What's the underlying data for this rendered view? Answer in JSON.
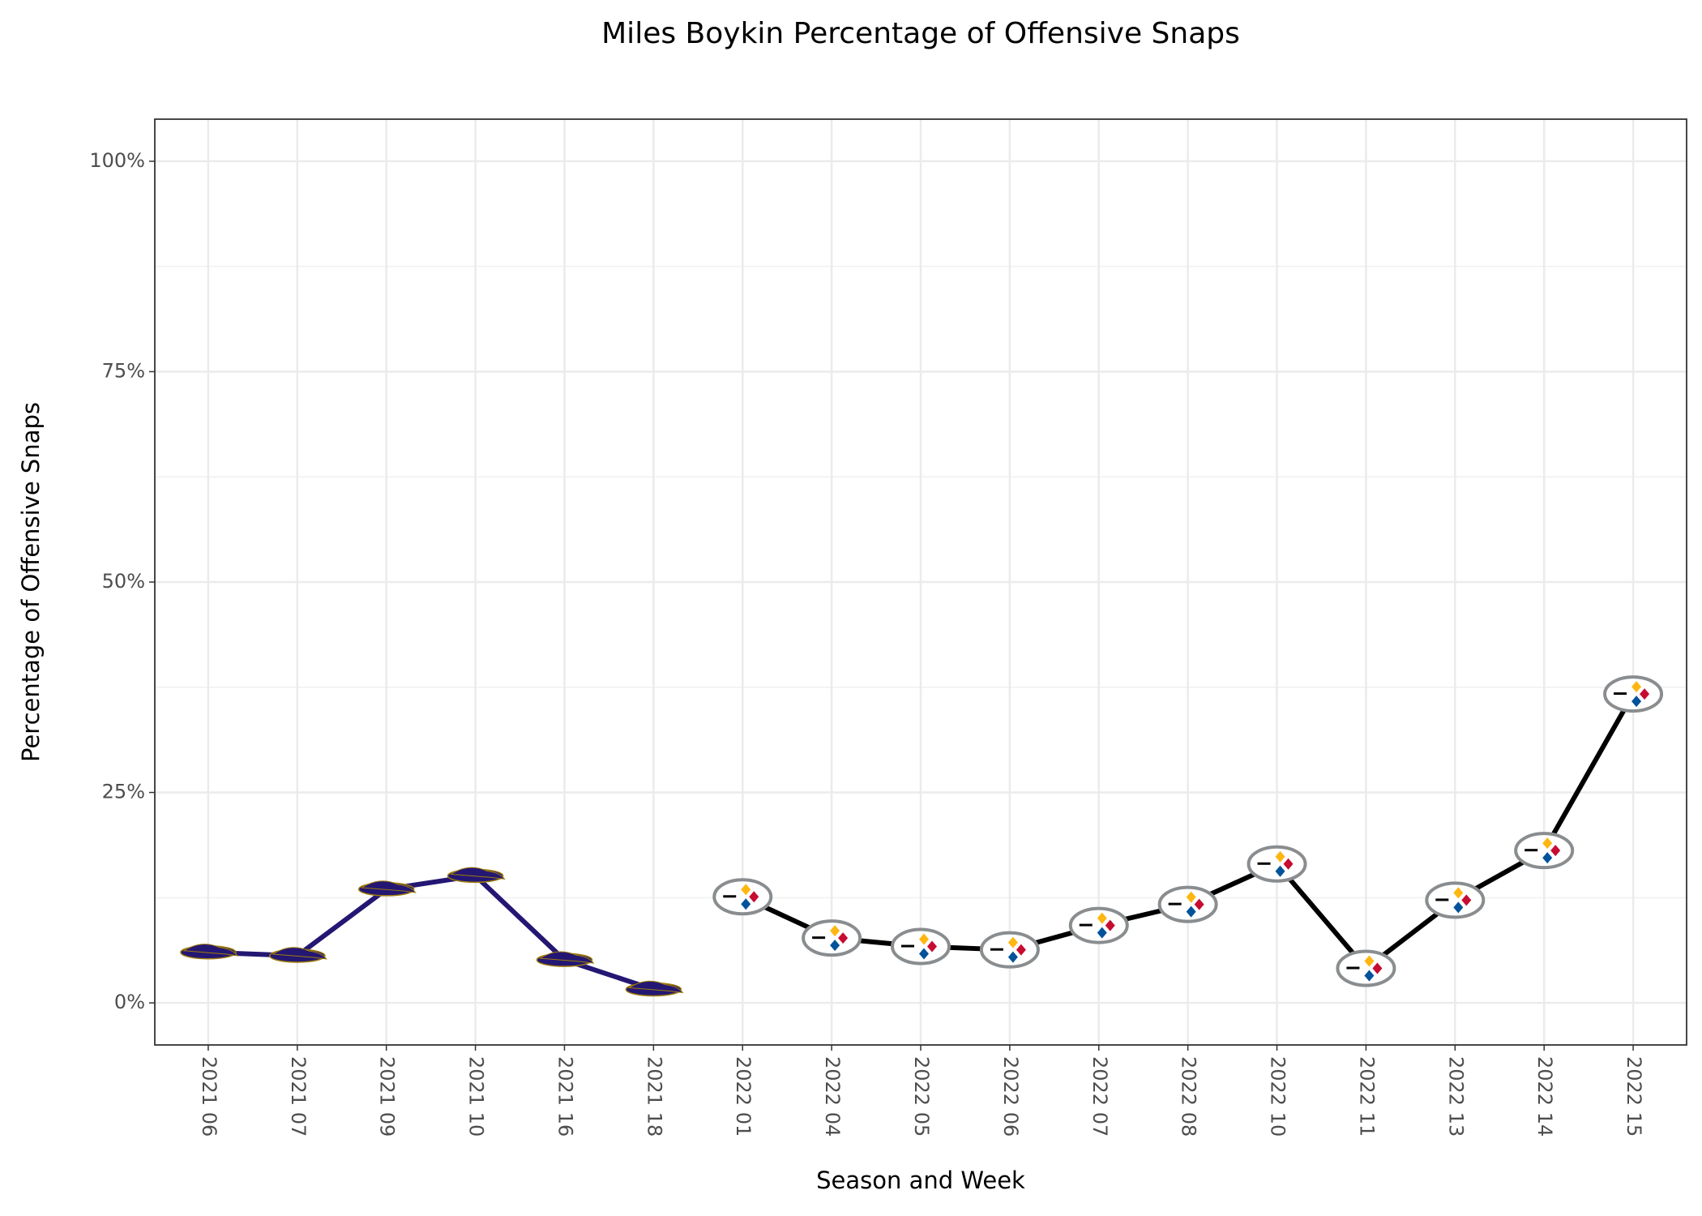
{
  "chart_data": {
    "type": "line",
    "title": "Miles Boykin Percentage of Offensive Snaps",
    "x_label": "Season and Week",
    "y_label": "Percentage of Offensive Snaps",
    "categories": [
      "2021 06",
      "2021 07",
      "2021 09",
      "2021 10",
      "2021 16",
      "2021 18",
      "2022 01",
      "2022 04",
      "2022 05",
      "2022 06",
      "2022 07",
      "2022 08",
      "2022 10",
      "2022 11",
      "2022 13",
      "2022 14",
      "2022 15"
    ],
    "series": [
      {
        "color": "#241773",
        "values": [
          6.0,
          5.6,
          13.5,
          15.1,
          5.1,
          1.6,
          null,
          null,
          null,
          null,
          null,
          null,
          null,
          null,
          null,
          null,
          null
        ]
      },
      {
        "color": "#000000",
        "values": [
          null,
          null,
          null,
          null,
          null,
          null,
          12.6,
          7.7,
          6.7,
          6.3,
          9.2,
          11.7,
          16.5,
          4.1,
          12.2,
          18.1,
          36.7
        ]
      }
    ],
    "ylim": [
      -5,
      105
    ],
    "yticks": [
      {
        "value": 0,
        "label": "0%"
      },
      {
        "value": 25,
        "label": "25%"
      },
      {
        "value": 50,
        "label": "50%"
      },
      {
        "value": 75,
        "label": "75%"
      },
      {
        "value": 100,
        "label": "100%"
      }
    ],
    "yminor_ticks": [
      12.5,
      37.5,
      62.5,
      87.5
    ],
    "grid": true
  }
}
